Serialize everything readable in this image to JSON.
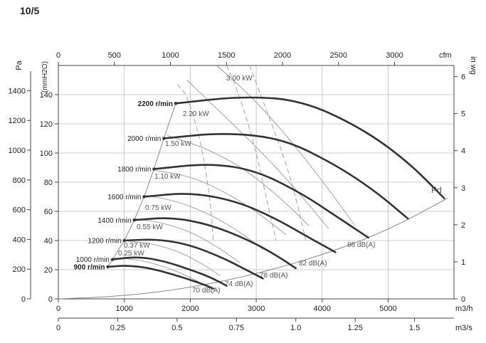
{
  "title": "10/5",
  "chart_data": {
    "type": "line",
    "title": "10/5",
    "axes": {
      "bottom": {
        "label": "m3/h",
        "ticks": [
          0,
          1000,
          2000,
          3000,
          4000,
          5000
        ],
        "range": [
          0,
          6000
        ]
      },
      "bottom2": {
        "label": "m3/s",
        "ticks": [
          "0",
          "0.25",
          "0.5",
          "0.75",
          "1.0",
          "1.25",
          "1.5"
        ]
      },
      "top": {
        "label": "cfm",
        "ticks": [
          0,
          500,
          1000,
          1500,
          2000,
          2500,
          3000
        ]
      },
      "left": {
        "label": "(mmH2O)",
        "ticks": [
          0,
          20,
          40,
          60,
          80,
          100,
          120,
          140
        ],
        "range": [
          0,
          160
        ]
      },
      "left2": {
        "label": "Pa",
        "ticks": [
          0,
          200,
          400,
          600,
          800,
          1000,
          1200,
          1400
        ]
      },
      "right": {
        "label": "in wg",
        "ticks": [
          0,
          1,
          2,
          3,
          4,
          5,
          6
        ]
      }
    },
    "grid": true,
    "speed_curves": [
      {
        "name": "900 r/min",
        "points": [
          [
            750,
            22
          ],
          [
            1050,
            23
          ],
          [
            1400,
            21
          ],
          [
            1800,
            16
          ],
          [
            2200,
            10
          ],
          [
            2350,
            7
          ]
        ]
      },
      {
        "name": "1000 r/min",
        "points": [
          [
            820,
            27
          ],
          [
            1200,
            29
          ],
          [
            1600,
            26
          ],
          [
            2000,
            20
          ],
          [
            2300,
            15
          ],
          [
            2550,
            9
          ]
        ]
      },
      {
        "name": "1200 r/min",
        "points": [
          [
            1000,
            40
          ],
          [
            1500,
            41
          ],
          [
            2000,
            37
          ],
          [
            2500,
            28
          ],
          [
            2800,
            21
          ],
          [
            3100,
            14
          ]
        ]
      },
      {
        "name": "1400 r/min",
        "points": [
          [
            1150,
            54
          ],
          [
            1700,
            56
          ],
          [
            2300,
            51
          ],
          [
            2900,
            40
          ],
          [
            3300,
            30
          ],
          [
            3600,
            21
          ]
        ]
      },
      {
        "name": "1600 r/min",
        "points": [
          [
            1300,
            70
          ],
          [
            2000,
            73
          ],
          [
            2700,
            67
          ],
          [
            3300,
            55
          ],
          [
            3800,
            42
          ],
          [
            4200,
            32
          ]
        ]
      },
      {
        "name": "1800 r/min",
        "points": [
          [
            1450,
            89
          ],
          [
            2300,
            93
          ],
          [
            3000,
            88
          ],
          [
            3700,
            72
          ],
          [
            4200,
            57
          ],
          [
            4700,
            42
          ]
        ]
      },
      {
        "name": "2000 r/min",
        "points": [
          [
            1600,
            110
          ],
          [
            2500,
            114
          ],
          [
            3400,
            110
          ],
          [
            4200,
            92
          ],
          [
            4800,
            74
          ],
          [
            5300,
            55
          ]
        ]
      },
      {
        "name": "2200 r/min",
        "points": [
          [
            1780,
            134
          ],
          [
            2800,
            139
          ],
          [
            3700,
            136
          ],
          [
            4600,
            117
          ],
          [
            5300,
            94
          ],
          [
            5850,
            69
          ]
        ]
      }
    ],
    "power_labels": [
      "3.00  kW",
      "2.20  kW",
      "1.50  kW",
      "1.10  kW",
      "0.75  kW",
      "0.55  kW",
      "0.37  kW",
      "0.25  kW"
    ],
    "noise_labels": [
      "70  dB(A)",
      "74  dB(A)",
      "78  dB(A)",
      "82  dB(A)",
      "86  dB(A)"
    ],
    "dynamic_pressure_label": "Pd",
    "dynamic_pressure_curve": [
      [
        0,
        0
      ],
      [
        1000,
        1.9
      ],
      [
        2000,
        7.6
      ],
      [
        3000,
        17
      ],
      [
        4000,
        30
      ],
      [
        5000,
        47
      ],
      [
        5900,
        69
      ]
    ]
  }
}
